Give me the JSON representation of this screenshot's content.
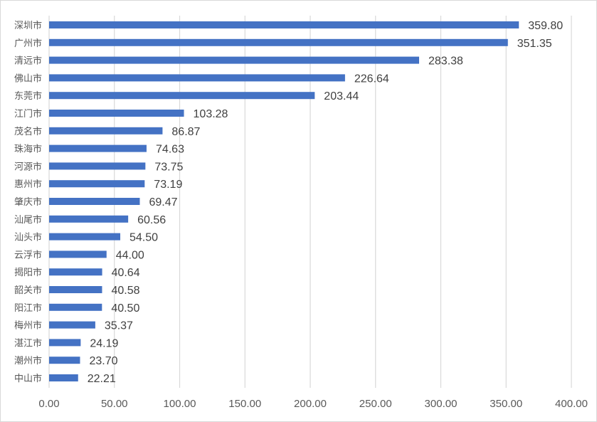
{
  "chart_data": {
    "type": "bar",
    "orientation": "horizontal",
    "title": "",
    "xlabel": "",
    "ylabel": "",
    "xlim": [
      0,
      400
    ],
    "grid": true,
    "bar_color": "#4472C4",
    "categories": [
      "深圳市",
      "广州市",
      "清远市",
      "佛山市",
      "东莞市",
      "江门市",
      "茂名市",
      "珠海市",
      "河源市",
      "惠州市",
      "肇庆市",
      "汕尾市",
      "汕头市",
      "云浮市",
      "揭阳市",
      "韶关市",
      "阳江市",
      "梅州市",
      "湛江市",
      "潮州市",
      "中山市"
    ],
    "values": [
      359.8,
      351.35,
      283.38,
      226.64,
      203.44,
      103.28,
      86.87,
      74.63,
      73.75,
      73.19,
      69.47,
      60.56,
      54.5,
      44.0,
      40.64,
      40.58,
      40.5,
      35.37,
      24.19,
      23.7,
      22.21
    ],
    "value_labels": [
      "359.80",
      "351.35",
      "283.38",
      "226.64",
      "203.44",
      "103.28",
      "86.87",
      "74.63",
      "73.75",
      "73.19",
      "69.47",
      "60.56",
      "54.50",
      "44.00",
      "40.64",
      "40.58",
      "40.50",
      "35.37",
      "24.19",
      "23.70",
      "22.21"
    ],
    "ticks": [
      0,
      50,
      100,
      150,
      200,
      250,
      300,
      350,
      400
    ],
    "tick_labels": [
      "0.00",
      "50.00",
      "100.00",
      "150.00",
      "200.00",
      "250.00",
      "300.00",
      "350.00",
      "400.00"
    ]
  }
}
